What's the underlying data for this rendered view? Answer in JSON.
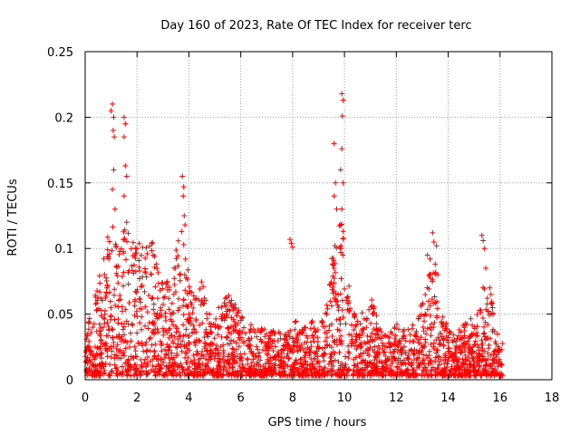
{
  "chart_data": {
    "type": "scatter",
    "title": "Day 160 of 2023, Rate Of TEC Index for receiver terc",
    "xlabel": "GPS time / hours",
    "ylabel": "ROTI / TECUs",
    "xlim": [
      0,
      18
    ],
    "ylim": [
      0,
      0.25
    ],
    "xticks": [
      0,
      2,
      4,
      6,
      8,
      10,
      12,
      14,
      16,
      18
    ],
    "yticks": [
      0,
      0.05,
      0.1,
      0.15,
      0.2,
      0.25
    ],
    "xtick_labels": [
      "0",
      "2",
      "4",
      "6",
      "8",
      "10",
      "12",
      "14",
      "16",
      "18"
    ],
    "ytick_labels": [
      "0",
      "0.05",
      "0.1",
      "0.15",
      "0.2",
      "0.25"
    ],
    "grid": true,
    "marker": "+",
    "series": [
      {
        "name": "ROTI",
        "color": "#ff0000",
        "data_extent": [
          0,
          16.1
        ],
        "envelope": [
          [
            0.0,
            0.04
          ],
          [
            0.25,
            0.055
          ],
          [
            0.5,
            0.075
          ],
          [
            0.75,
            0.095
          ],
          [
            1.0,
            0.13
          ],
          [
            1.25,
            0.1
          ],
          [
            1.5,
            0.12
          ],
          [
            1.75,
            0.115
          ],
          [
            2.0,
            0.11
          ],
          [
            2.25,
            0.1
          ],
          [
            2.5,
            0.12
          ],
          [
            2.75,
            0.09
          ],
          [
            3.0,
            0.08
          ],
          [
            3.25,
            0.075
          ],
          [
            3.5,
            0.1
          ],
          [
            3.75,
            0.12
          ],
          [
            4.0,
            0.08
          ],
          [
            4.25,
            0.06
          ],
          [
            4.5,
            0.08
          ],
          [
            4.75,
            0.05
          ],
          [
            5.0,
            0.05
          ],
          [
            5.25,
            0.06
          ],
          [
            5.5,
            0.065
          ],
          [
            5.75,
            0.06
          ],
          [
            6.0,
            0.055
          ],
          [
            6.25,
            0.045
          ],
          [
            6.5,
            0.04
          ],
          [
            6.75,
            0.04
          ],
          [
            7.0,
            0.04
          ],
          [
            7.25,
            0.04
          ],
          [
            7.5,
            0.04
          ],
          [
            7.75,
            0.035
          ],
          [
            8.0,
            0.05
          ],
          [
            8.25,
            0.04
          ],
          [
            8.5,
            0.04
          ],
          [
            8.75,
            0.045
          ],
          [
            9.0,
            0.04
          ],
          [
            9.25,
            0.05
          ],
          [
            9.5,
            0.1
          ],
          [
            9.75,
            0.12
          ],
          [
            10.0,
            0.12
          ],
          [
            10.25,
            0.06
          ],
          [
            10.5,
            0.05
          ],
          [
            10.75,
            0.055
          ],
          [
            11.0,
            0.065
          ],
          [
            11.25,
            0.05
          ],
          [
            11.5,
            0.035
          ],
          [
            11.75,
            0.035
          ],
          [
            12.0,
            0.045
          ],
          [
            12.25,
            0.04
          ],
          [
            12.5,
            0.04
          ],
          [
            12.75,
            0.045
          ],
          [
            13.0,
            0.06
          ],
          [
            13.25,
            0.08
          ],
          [
            13.5,
            0.09
          ],
          [
            13.75,
            0.05
          ],
          [
            14.0,
            0.04
          ],
          [
            14.25,
            0.04
          ],
          [
            14.5,
            0.04
          ],
          [
            14.75,
            0.045
          ],
          [
            15.0,
            0.05
          ],
          [
            15.25,
            0.07
          ],
          [
            15.5,
            0.075
          ],
          [
            15.75,
            0.055
          ],
          [
            16.0,
            0.035
          ],
          [
            16.1,
            0.03
          ]
        ],
        "spikes": [
          [
            1.0,
            0.205
          ],
          [
            1.05,
            0.21
          ],
          [
            1.1,
            0.2
          ],
          [
            1.08,
            0.19
          ],
          [
            1.12,
            0.185
          ],
          [
            1.1,
            0.16
          ],
          [
            1.05,
            0.145
          ],
          [
            1.15,
            0.13
          ],
          [
            1.5,
            0.2
          ],
          [
            1.55,
            0.195
          ],
          [
            1.5,
            0.185
          ],
          [
            1.55,
            0.163
          ],
          [
            1.6,
            0.155
          ],
          [
            1.5,
            0.14
          ],
          [
            1.6,
            0.12
          ],
          [
            3.75,
            0.155
          ],
          [
            3.8,
            0.147
          ],
          [
            3.78,
            0.14
          ],
          [
            3.82,
            0.125
          ],
          [
            3.85,
            0.118
          ],
          [
            3.8,
            0.103
          ],
          [
            7.9,
            0.107
          ],
          [
            7.95,
            0.104
          ],
          [
            8.0,
            0.101
          ],
          [
            9.6,
            0.18
          ],
          [
            9.65,
            0.15
          ],
          [
            9.6,
            0.14
          ],
          [
            9.7,
            0.13
          ],
          [
            9.9,
            0.218
          ],
          [
            9.95,
            0.213
          ],
          [
            9.92,
            0.201
          ],
          [
            9.9,
            0.176
          ],
          [
            9.85,
            0.16
          ],
          [
            9.95,
            0.15
          ],
          [
            9.9,
            0.13
          ],
          [
            9.85,
            0.118
          ],
          [
            13.2,
            0.095
          ],
          [
            13.3,
            0.092
          ],
          [
            13.4,
            0.112
          ],
          [
            13.45,
            0.105
          ],
          [
            13.55,
            0.102
          ],
          [
            13.5,
            0.088
          ],
          [
            13.6,
            0.08
          ],
          [
            15.3,
            0.11
          ],
          [
            15.35,
            0.106
          ],
          [
            15.4,
            0.1
          ],
          [
            15.45,
            0.085
          ],
          [
            15.6,
            0.07
          ],
          [
            15.65,
            0.065
          ]
        ]
      }
    ]
  }
}
